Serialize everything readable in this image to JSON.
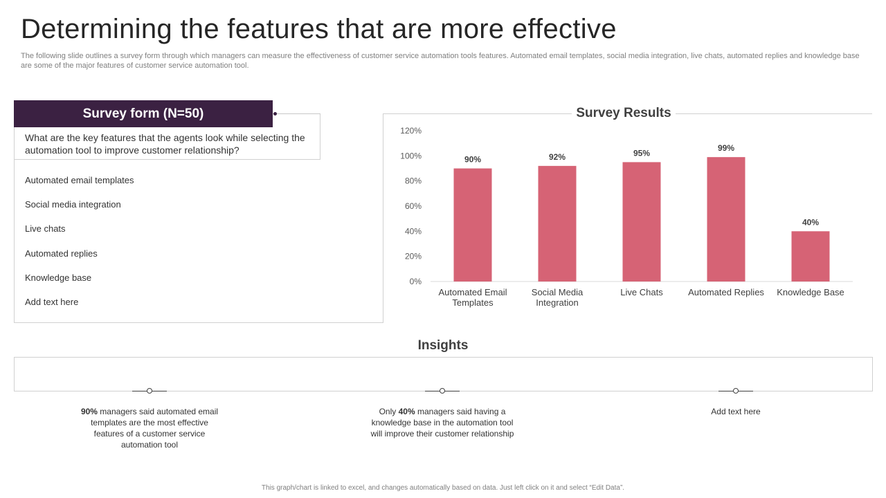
{
  "header": {
    "title": "Determining the features that are more effective",
    "subtitle": "The following slide outlines a survey form through which managers can measure the effectiveness of customer service automation tools features. Automated email templates, social media integration, live chats, automated replies and knowledge base are some of the major features of customer service automation tool."
  },
  "survey": {
    "heading": "Survey form (N=50)",
    "question": "What are the key features that the agents look while selecting the automation tool to improve customer relationship?",
    "options": [
      "Automated email templates",
      "Social media integration",
      "Live chats",
      "Automated replies",
      "Knowledge base",
      "Add text here"
    ]
  },
  "results": {
    "heading": "Survey Results"
  },
  "chart_data": {
    "type": "bar",
    "title": "Survey Results",
    "categories": [
      "Automated Email Templates",
      "Social Media Integration",
      "Live Chats",
      "Automated Replies",
      "Knowledge Base"
    ],
    "category_lines": [
      [
        "Automated Email",
        "Templates"
      ],
      [
        "Social Media",
        "Integration"
      ],
      [
        "Live Chats"
      ],
      [
        "Automated Replies"
      ],
      [
        "Knowledge Base"
      ]
    ],
    "values": [
      90,
      92,
      95,
      99,
      40
    ],
    "data_labels": [
      "90%",
      "92%",
      "95%",
      "99%",
      "40%"
    ],
    "ylim": [
      0,
      120
    ],
    "yticks": [
      0,
      20,
      40,
      60,
      80,
      100,
      120
    ],
    "ytick_labels": [
      "0%",
      "20%",
      "40%",
      "60%",
      "80%",
      "100%",
      "120%"
    ],
    "bar_color": "#d66375",
    "xlabel": "",
    "ylabel": "",
    "grid": false
  },
  "insights": {
    "heading": "Insights",
    "items": [
      {
        "pre": "",
        "bold": "90%",
        "post": " managers said automated email templates are the most effective features of a customer service automation tool"
      },
      {
        "pre": "Only ",
        "bold": "40%",
        "post": " managers said having a knowledge base in the automation tool will improve their customer relationship"
      },
      {
        "pre": "",
        "bold": "",
        "post": "Add text here"
      }
    ]
  },
  "footer": {
    "note": "This graph/chart is linked to excel, and changes automatically based on data. Just left click on it and select “Edit Data”."
  }
}
